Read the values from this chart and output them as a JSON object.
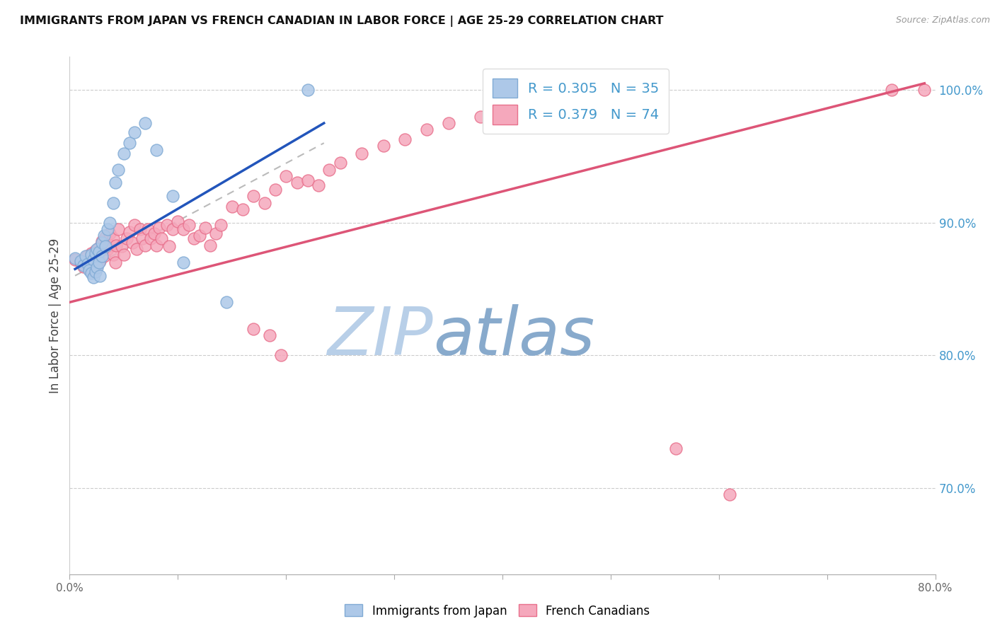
{
  "title": "IMMIGRANTS FROM JAPAN VS FRENCH CANADIAN IN LABOR FORCE | AGE 25-29 CORRELATION CHART",
  "source": "Source: ZipAtlas.com",
  "ylabel": "In Labor Force | Age 25-29",
  "xlim": [
    0.0,
    0.8
  ],
  "ylim": [
    0.635,
    1.025
  ],
  "right_yticks": [
    0.7,
    0.8,
    0.9,
    1.0
  ],
  "right_yticklabels": [
    "70.0%",
    "80.0%",
    "90.0%",
    "100.0%"
  ],
  "xticks": [
    0.0,
    0.1,
    0.2,
    0.3,
    0.4,
    0.5,
    0.6,
    0.7,
    0.8
  ],
  "xticklabels": [
    "0.0%",
    "",
    "",
    "",
    "",
    "",
    "",
    "",
    "80.0%"
  ],
  "blue_R": 0.305,
  "blue_N": 35,
  "pink_R": 0.379,
  "pink_N": 74,
  "blue_color": "#adc8e8",
  "pink_color": "#f5a8bc",
  "blue_edge": "#80aad4",
  "pink_edge": "#e8708c",
  "blue_line_color": "#2255bb",
  "pink_line_color": "#dd5577",
  "gray_dash_color": "#bbbbbb",
  "watermark_zip_color": "#b8cfe8",
  "watermark_atlas_color": "#88aacc",
  "watermark_fontsize": 68,
  "blue_x": [
    0.005,
    0.01,
    0.013,
    0.015,
    0.017,
    0.018,
    0.02,
    0.02,
    0.022,
    0.022,
    0.024,
    0.024,
    0.025,
    0.025,
    0.027,
    0.027,
    0.028,
    0.03,
    0.03,
    0.032,
    0.033,
    0.035,
    0.037,
    0.04,
    0.042,
    0.045,
    0.05,
    0.055,
    0.06,
    0.07,
    0.08,
    0.095,
    0.105,
    0.145,
    0.22
  ],
  "blue_y": [
    0.873,
    0.871,
    0.868,
    0.875,
    0.869,
    0.864,
    0.876,
    0.862,
    0.872,
    0.859,
    0.877,
    0.863,
    0.88,
    0.866,
    0.878,
    0.87,
    0.86,
    0.885,
    0.875,
    0.89,
    0.882,
    0.895,
    0.9,
    0.915,
    0.93,
    0.94,
    0.952,
    0.96,
    0.968,
    0.975,
    0.955,
    0.92,
    0.87,
    0.84,
    1.0
  ],
  "pink_x": [
    0.005,
    0.01,
    0.013,
    0.016,
    0.018,
    0.02,
    0.022,
    0.024,
    0.025,
    0.027,
    0.028,
    0.03,
    0.032,
    0.033,
    0.035,
    0.037,
    0.038,
    0.04,
    0.04,
    0.042,
    0.043,
    0.045,
    0.048,
    0.05,
    0.053,
    0.055,
    0.058,
    0.06,
    0.062,
    0.065,
    0.067,
    0.07,
    0.072,
    0.075,
    0.078,
    0.08,
    0.083,
    0.085,
    0.09,
    0.092,
    0.095,
    0.1,
    0.105,
    0.11,
    0.115,
    0.12,
    0.125,
    0.13,
    0.135,
    0.14,
    0.15,
    0.16,
    0.17,
    0.18,
    0.19,
    0.2,
    0.21,
    0.22,
    0.23,
    0.24,
    0.25,
    0.27,
    0.29,
    0.31,
    0.33,
    0.35,
    0.38,
    0.17,
    0.185,
    0.195,
    0.56,
    0.61,
    0.76,
    0.79
  ],
  "pink_y": [
    0.872,
    0.87,
    0.867,
    0.875,
    0.865,
    0.877,
    0.863,
    0.879,
    0.868,
    0.881,
    0.871,
    0.886,
    0.875,
    0.889,
    0.88,
    0.892,
    0.883,
    0.876,
    0.888,
    0.87,
    0.883,
    0.895,
    0.882,
    0.876,
    0.888,
    0.893,
    0.885,
    0.898,
    0.88,
    0.895,
    0.888,
    0.883,
    0.895,
    0.888,
    0.892,
    0.883,
    0.896,
    0.888,
    0.898,
    0.882,
    0.895,
    0.901,
    0.895,
    0.898,
    0.888,
    0.89,
    0.896,
    0.883,
    0.892,
    0.898,
    0.912,
    0.91,
    0.92,
    0.915,
    0.925,
    0.935,
    0.93,
    0.932,
    0.928,
    0.94,
    0.945,
    0.952,
    0.958,
    0.963,
    0.97,
    0.975,
    0.98,
    0.82,
    0.815,
    0.8,
    0.73,
    0.695,
    1.0,
    1.0
  ],
  "blue_trendline_x": [
    0.005,
    0.235
  ],
  "blue_trendline_y": [
    0.865,
    0.975
  ],
  "pink_trendline_x": [
    0.0,
    0.79
  ],
  "pink_trendline_y": [
    0.84,
    1.005
  ],
  "gray_trendline_x": [
    0.005,
    0.235
  ],
  "gray_trendline_y": [
    0.86,
    0.96
  ]
}
